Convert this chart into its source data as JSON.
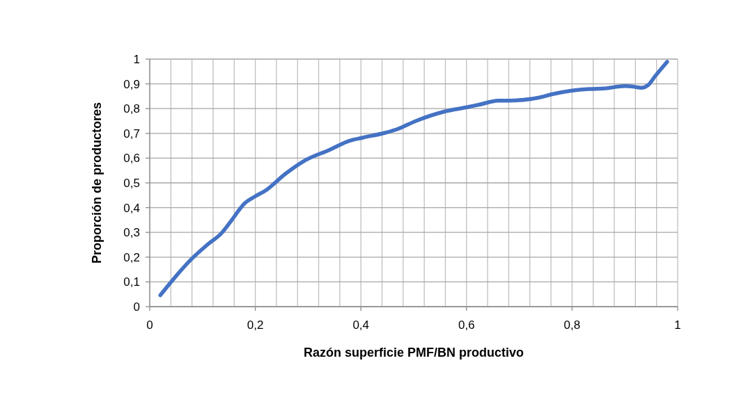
{
  "chart_data": {
    "type": "line",
    "xlabel": "Razón superficie PMF/BN productivo",
    "ylabel": "Proporción de productores",
    "xlim": [
      0,
      1
    ],
    "ylim": [
      0,
      1
    ],
    "xticks": [
      0,
      {
        "value": 0.04,
        "label": null
      },
      {
        "value": 0.08,
        "label": null
      },
      {
        "value": 0.12,
        "label": null
      },
      {
        "value": 0.16,
        "label": null
      },
      {
        "value": 0.2,
        "label": "0,2"
      },
      {
        "value": 0.24,
        "label": null
      },
      {
        "value": 0.28,
        "label": null
      },
      {
        "value": 0.32,
        "label": null
      },
      {
        "value": 0.36,
        "label": null
      },
      {
        "value": 0.4,
        "label": "0,4"
      },
      {
        "value": 0.44,
        "label": null
      },
      {
        "value": 0.48,
        "label": null
      },
      {
        "value": 0.52,
        "label": null
      },
      {
        "value": 0.56,
        "label": null
      },
      {
        "value": 0.6,
        "label": "0,6"
      },
      {
        "value": 0.64,
        "label": null
      },
      {
        "value": 0.68,
        "label": null
      },
      {
        "value": 0.72,
        "label": null
      },
      {
        "value": 0.76,
        "label": null
      },
      {
        "value": 0.8,
        "label": "0,8"
      },
      {
        "value": 0.84,
        "label": null
      },
      {
        "value": 0.88,
        "label": null
      },
      {
        "value": 0.92,
        "label": null
      },
      {
        "value": 0.96,
        "label": null
      },
      1
    ],
    "yticks": [
      0,
      {
        "value": 0.1,
        "label": "0,1"
      },
      {
        "value": 0.2,
        "label": "0,2"
      },
      {
        "value": 0.3,
        "label": "0,3"
      },
      {
        "value": 0.4,
        "label": "0,4"
      },
      {
        "value": 0.5,
        "label": "0,5"
      },
      {
        "value": 0.6,
        "label": "0,6"
      },
      {
        "value": 0.7,
        "label": "0,7"
      },
      {
        "value": 0.8,
        "label": "0,8"
      },
      {
        "value": 0.9,
        "label": "0,9"
      },
      1
    ],
    "grid": true,
    "line_style": "solid",
    "series": [
      {
        "color": "#4472c4",
        "x": [
          0.02,
          0.078,
          0.109,
          0.136,
          0.153,
          0.18,
          0.2,
          0.22,
          0.256,
          0.291,
          0.34,
          0.38,
          0.402,
          0.447,
          0.469,
          0.504,
          0.558,
          0.602,
          0.624,
          0.66,
          0.691,
          0.736,
          0.762,
          0.798,
          0.833,
          0.86,
          0.9,
          0.918,
          0.931,
          0.944,
          0.958,
          0.98
        ],
        "values": [
          0.046,
          0.19,
          0.25,
          0.297,
          0.343,
          0.418,
          0.446,
          0.47,
          0.535,
          0.587,
          0.633,
          0.671,
          0.682,
          0.703,
          0.717,
          0.75,
          0.788,
          0.806,
          0.816,
          0.832,
          0.833,
          0.844,
          0.858,
          0.872,
          0.879,
          0.881,
          0.891,
          0.888,
          0.884,
          0.895,
          0.933,
          0.989
        ]
      }
    ]
  }
}
